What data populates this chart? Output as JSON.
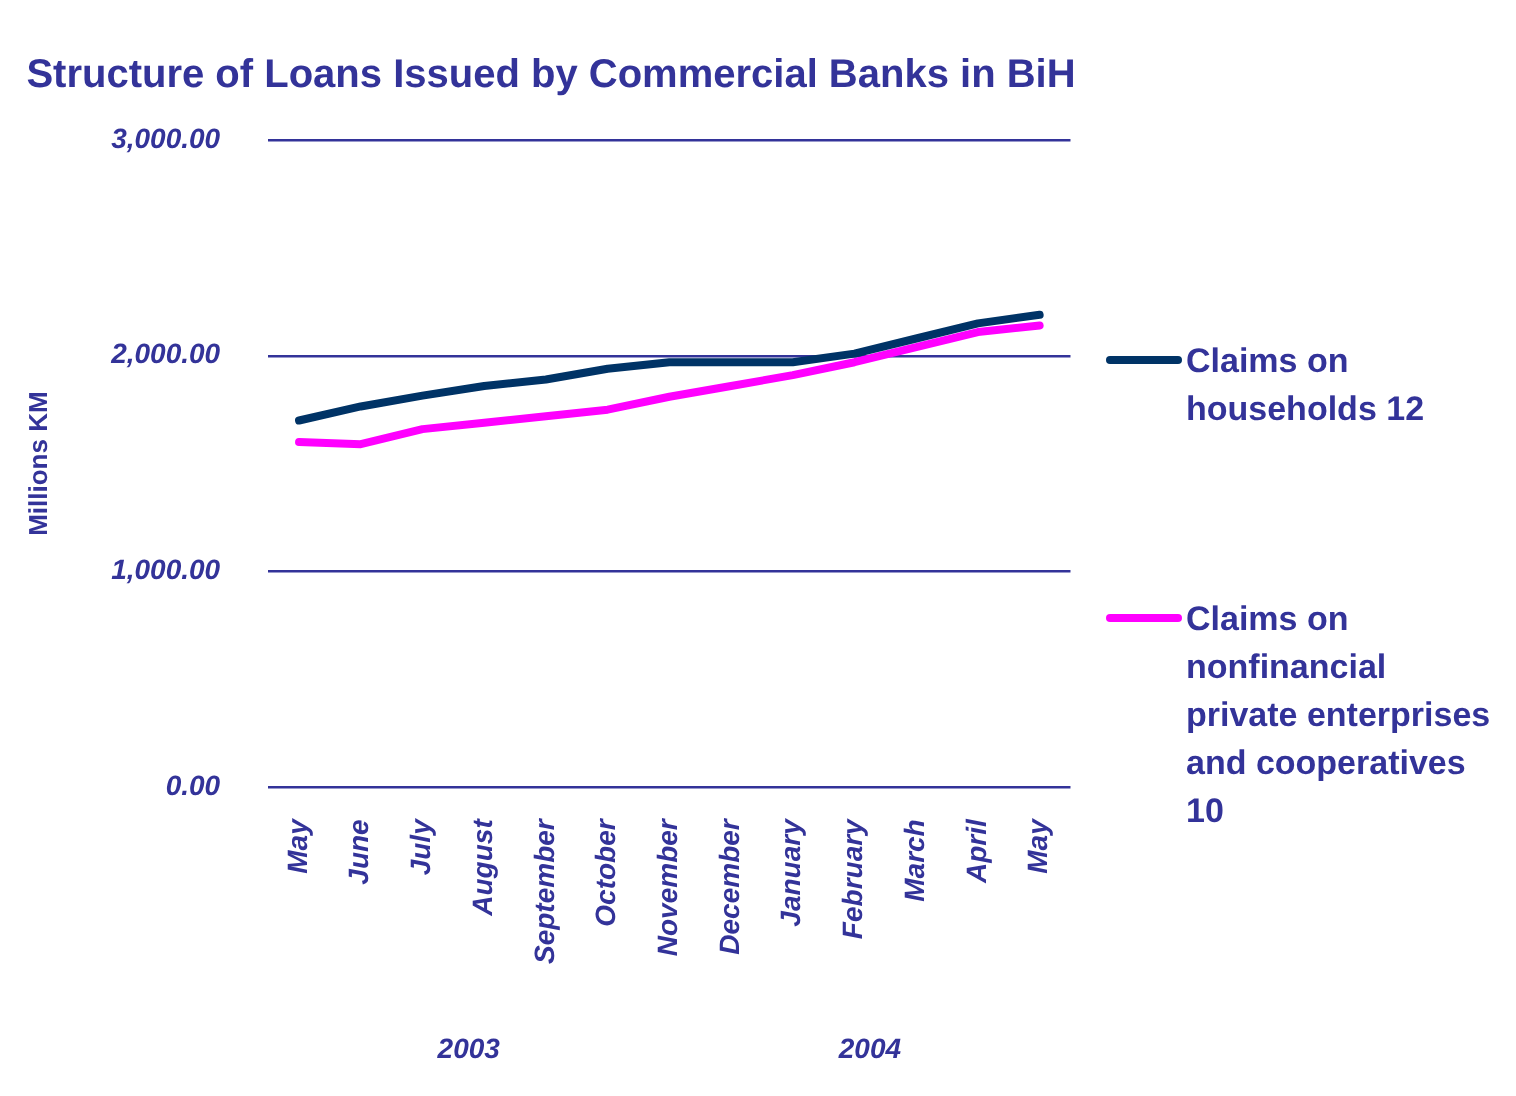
{
  "chart_data": {
    "type": "line",
    "title": "Structure of Loans Issued by Commercial Banks in BiH",
    "ylabel": "Millions KM",
    "categories": [
      "May",
      "June",
      "July",
      "August",
      "September",
      "October",
      "November",
      "December",
      "January",
      "February",
      "March",
      "April",
      "May"
    ],
    "series": [
      {
        "name": "Claims on households 12",
        "color": "#003366",
        "values": [
          1700,
          1765,
          1815,
          1860,
          1890,
          1940,
          1970,
          1970,
          1970,
          2010,
          2080,
          2150,
          2190
        ]
      },
      {
        "name": "Claims on nonfinancial private enterprises and cooperatives 10",
        "color": "#ff00ff",
        "values": [
          1600,
          1590,
          1660,
          1690,
          1720,
          1750,
          1810,
          1860,
          1910,
          1970,
          2040,
          2110,
          2140
        ]
      }
    ],
    "ylim": [
      0,
      3000
    ],
    "yticks": [
      {
        "value": 0,
        "label": "0.00"
      },
      {
        "value": 1000,
        "label": "1,000.00"
      },
      {
        "value": 2000,
        "label": "2,000.00"
      },
      {
        "value": 3000,
        "label": "3,000.00"
      }
    ],
    "grid": "y",
    "legend": "right",
    "marker": "none",
    "line_style": "solid",
    "annotations": [
      "2003",
      "2004"
    ]
  }
}
